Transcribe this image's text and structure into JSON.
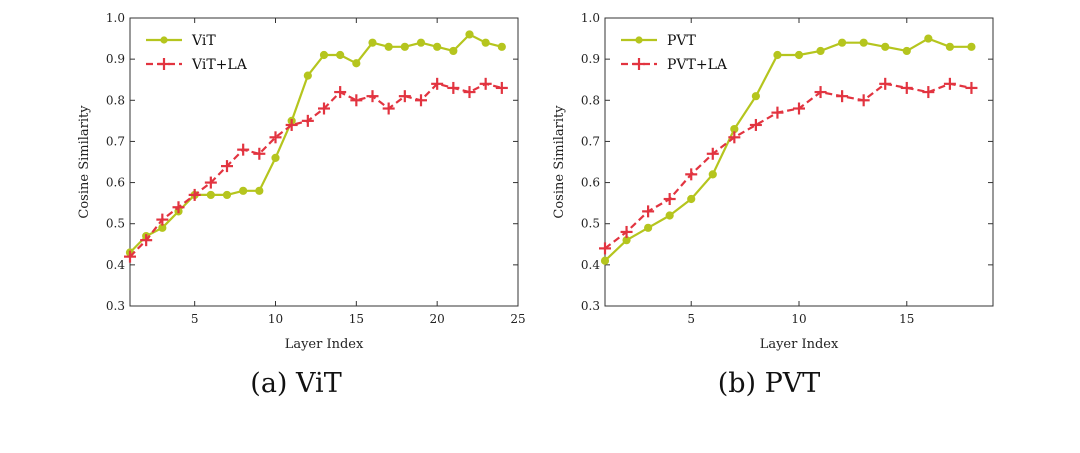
{
  "captions": [
    "(a) ViT",
    "(b) PVT"
  ],
  "colors": {
    "line_plain": "#b5c51e",
    "line_la": "#e23440",
    "axis": "#333333"
  },
  "chart_data": [
    {
      "type": "line",
      "title": "",
      "xlabel": "Layer Index",
      "ylabel": "Cosine Similarity",
      "xlim": [
        1,
        25
      ],
      "ylim": [
        0.3,
        1.0
      ],
      "xticks": [
        5,
        10,
        15,
        20,
        25
      ],
      "yticks": [
        0.3,
        0.4,
        0.5,
        0.6,
        0.7,
        0.8,
        0.9,
        1.0
      ],
      "legend_position": "top-left",
      "grid": false,
      "x": [
        1,
        2,
        3,
        4,
        5,
        6,
        7,
        8,
        9,
        10,
        11,
        12,
        13,
        14,
        15,
        16,
        17,
        18,
        19,
        20,
        21,
        22,
        23,
        24
      ],
      "series": [
        {
          "name": "ViT",
          "marker": "circle",
          "style": "solid",
          "values": [
            0.43,
            0.47,
            0.49,
            0.53,
            0.57,
            0.57,
            0.57,
            0.58,
            0.58,
            0.66,
            0.75,
            0.86,
            0.91,
            0.91,
            0.89,
            0.94,
            0.93,
            0.93,
            0.94,
            0.93,
            0.92,
            0.96,
            0.94,
            0.93
          ]
        },
        {
          "name": "ViT+LA",
          "marker": "plus",
          "style": "dashed",
          "values": [
            0.42,
            0.46,
            0.51,
            0.54,
            0.57,
            0.6,
            0.64,
            0.68,
            0.67,
            0.71,
            0.74,
            0.75,
            0.78,
            0.82,
            0.8,
            0.81,
            0.78,
            0.81,
            0.8,
            0.84,
            0.83,
            0.82,
            0.84,
            0.83
          ]
        }
      ]
    },
    {
      "type": "line",
      "title": "",
      "xlabel": "Layer Index",
      "ylabel": "Cosine Similarity",
      "xlim": [
        1,
        19
      ],
      "ylim": [
        0.3,
        1.0
      ],
      "xticks": [
        5,
        10,
        15
      ],
      "yticks": [
        0.3,
        0.4,
        0.5,
        0.6,
        0.7,
        0.8,
        0.9,
        1.0
      ],
      "legend_position": "top-left",
      "grid": false,
      "x": [
        1,
        2,
        3,
        4,
        5,
        6,
        7,
        8,
        9,
        10,
        11,
        12,
        13,
        14,
        15,
        16,
        17,
        18
      ],
      "series": [
        {
          "name": "PVT",
          "marker": "circle",
          "style": "solid",
          "values": [
            0.41,
            0.46,
            0.49,
            0.52,
            0.56,
            0.62,
            0.73,
            0.81,
            0.91,
            0.91,
            0.92,
            0.94,
            0.94,
            0.93,
            0.92,
            0.95,
            0.93,
            0.93
          ]
        },
        {
          "name": "PVT+LA",
          "marker": "plus",
          "style": "dashed",
          "values": [
            0.44,
            0.48,
            0.53,
            0.56,
            0.62,
            0.67,
            0.71,
            0.74,
            0.77,
            0.78,
            0.82,
            0.81,
            0.8,
            0.84,
            0.83,
            0.82,
            0.84,
            0.83
          ]
        }
      ]
    }
  ]
}
